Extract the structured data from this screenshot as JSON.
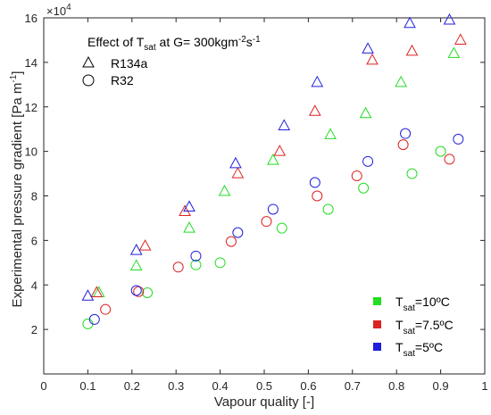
{
  "chart_data": {
    "type": "scatter",
    "xlabel": "Vapour quality [-]",
    "ylabel": "Experimental pressure gradient [Pa m",
    "ylabel_sup": "-1",
    "ylabel_end": "]",
    "xlim": [
      0,
      1
    ],
    "ylim": [
      0,
      160000
    ],
    "xticks": [
      0,
      0.1,
      0.2,
      0.3,
      0.4,
      0.5,
      0.6,
      0.7,
      0.8,
      0.9,
      1
    ],
    "xtick_labels": [
      "0",
      "0.1",
      "0.2",
      "0.3",
      "0.4",
      "0.5",
      "0.6",
      "0.7",
      "0.8",
      "0.9",
      "1"
    ],
    "yticks": [
      20000,
      40000,
      60000,
      80000,
      100000,
      120000,
      140000,
      160000
    ],
    "ytick_labels": [
      "2",
      "4",
      "6",
      "8",
      "10",
      "12",
      "14",
      "16"
    ],
    "y_exponent": "×10",
    "y_exponent_power": "4",
    "grid": false,
    "annotation": {
      "prefix": "Effect of T",
      "sub": "sat",
      "middle": " at G= 300kgm",
      "sup1": "-2",
      "mid2": "s",
      "sup2": "-1"
    },
    "marker_legend": [
      {
        "marker": "triangle",
        "label": "R134a"
      },
      {
        "marker": "circle",
        "label": "R32"
      }
    ],
    "color_legend": [
      {
        "color": "#22dd22",
        "prefix": "T",
        "sub": "sat",
        "suffix": "=10ºC"
      },
      {
        "color": "#dd2222",
        "prefix": "T",
        "sub": "sat",
        "suffix": "=7.5ºC"
      },
      {
        "color": "#1f1fdd",
        "prefix": "T",
        "sub": "sat",
        "suffix": "=5ºC"
      }
    ],
    "series": [
      {
        "fluid": "R134a",
        "tsat": "10ºC",
        "marker": "triangle",
        "color": "#22dd22",
        "x": [
          0.125,
          0.21,
          0.33,
          0.41,
          0.52,
          0.65,
          0.73,
          0.81,
          0.93
        ],
        "y": [
          36500,
          48500,
          65500,
          82000,
          96000,
          107500,
          117000,
          131000,
          144000
        ]
      },
      {
        "fluid": "R134a",
        "tsat": "7.5ºC",
        "marker": "triangle",
        "color": "#dd2222",
        "x": [
          0.12,
          0.23,
          0.32,
          0.44,
          0.535,
          0.615,
          0.745,
          0.835,
          0.945
        ],
        "y": [
          36500,
          57500,
          73000,
          90000,
          100000,
          118000,
          141000,
          145000,
          150000
        ]
      },
      {
        "fluid": "R134a",
        "tsat": "5ºC",
        "marker": "triangle",
        "color": "#1f1fdd",
        "x": [
          0.1,
          0.21,
          0.33,
          0.435,
          0.545,
          0.62,
          0.735,
          0.83,
          0.92
        ],
        "y": [
          35000,
          55500,
          75000,
          94500,
          111500,
          131000,
          146000,
          157500,
          159000
        ]
      },
      {
        "fluid": "R32",
        "tsat": "10ºC",
        "marker": "circle",
        "color": "#22dd22",
        "x": [
          0.1,
          0.235,
          0.345,
          0.4,
          0.54,
          0.645,
          0.725,
          0.835,
          0.9
        ],
        "y": [
          22500,
          36500,
          49000,
          50000,
          65500,
          74000,
          83500,
          90000,
          100000
        ]
      },
      {
        "fluid": "R32",
        "tsat": "7.5ºC",
        "marker": "circle",
        "color": "#dd2222",
        "x": [
          0.14,
          0.215,
          0.305,
          0.425,
          0.505,
          0.62,
          0.71,
          0.815,
          0.92
        ],
        "y": [
          29000,
          37000,
          48000,
          59500,
          68500,
          80000,
          89000,
          103000,
          96500
        ]
      },
      {
        "fluid": "R32",
        "tsat": "5ºC",
        "marker": "circle",
        "color": "#1f1fdd",
        "x": [
          0.115,
          0.21,
          0.345,
          0.44,
          0.52,
          0.615,
          0.735,
          0.82,
          0.94
        ],
        "y": [
          24500,
          37500,
          53000,
          63500,
          74000,
          86000,
          95500,
          108000,
          105500
        ]
      }
    ]
  }
}
